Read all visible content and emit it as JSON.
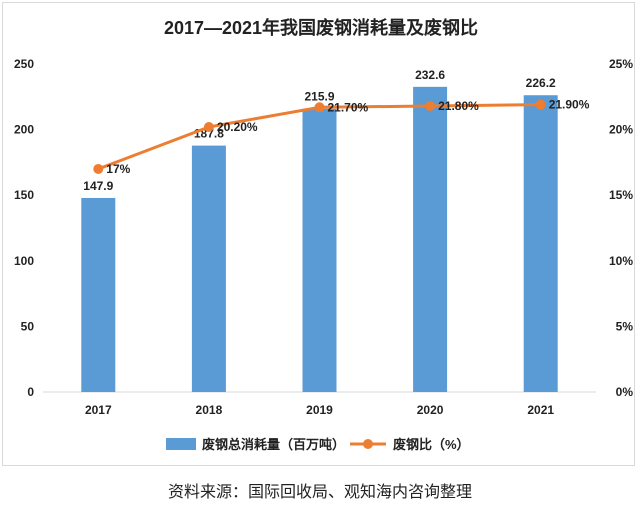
{
  "chart_data": {
    "type": "bar",
    "title": "2017—2021年我国废钢消耗量及废钢比",
    "categories": [
      "2017",
      "2018",
      "2019",
      "2020",
      "2021"
    ],
    "series": [
      {
        "name": "废钢总消耗量（百万吨）",
        "type": "bar",
        "axis": "left",
        "color": "#5b9bd5",
        "values": [
          147.9,
          187.8,
          215.9,
          232.6,
          226.2
        ],
        "labels": [
          "147.9",
          "187.8",
          "215.9",
          "232.6",
          "226.2"
        ]
      },
      {
        "name": "废钢比（%）",
        "type": "line",
        "axis": "right",
        "color": "#ed7d31",
        "values": [
          17,
          20.2,
          21.7,
          21.8,
          21.9
        ],
        "labels": [
          "17%",
          "20.20%",
          "21.70%",
          "21.80%",
          "21.90%"
        ]
      }
    ],
    "y_left": {
      "ylim": [
        0,
        250
      ],
      "ticks": [
        "0",
        "50",
        "100",
        "150",
        "200",
        "250"
      ]
    },
    "y_right": {
      "ylim": [
        0,
        25
      ],
      "ticks": [
        "0%",
        "5%",
        "10%",
        "15%",
        "20%",
        "25%"
      ]
    },
    "grid": false,
    "legend_position": "bottom"
  },
  "source_note": "资料来源：国际回收局、观知海内咨询整理"
}
